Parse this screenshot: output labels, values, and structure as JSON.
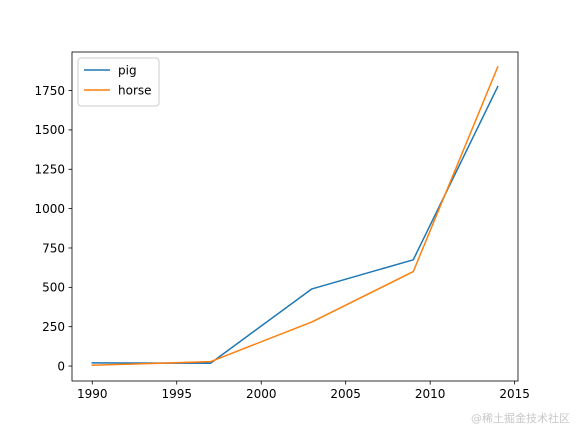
{
  "chart_data": {
    "type": "line",
    "title": "",
    "xlabel": "",
    "ylabel": "",
    "xlim": [
      1988.8,
      2015.2
    ],
    "ylim": [
      -95,
      1995
    ],
    "xticks": [
      1990,
      1995,
      2000,
      2005,
      2010,
      2015
    ],
    "yticks": [
      0,
      250,
      500,
      750,
      1000,
      1250,
      1500,
      1750
    ],
    "grid": false,
    "legend_position": "top-left",
    "series": [
      {
        "name": "pig",
        "color": "#1f77b4",
        "points": [
          [
            1990,
            20
          ],
          [
            1997,
            18
          ],
          [
            2003,
            490
          ],
          [
            2009,
            675
          ],
          [
            2014,
            1775
          ]
        ]
      },
      {
        "name": "horse",
        "color": "#ff7f0e",
        "points": [
          [
            1990,
            5
          ],
          [
            1997,
            28
          ],
          [
            2003,
            280
          ],
          [
            2009,
            600
          ],
          [
            2014,
            1900
          ]
        ]
      }
    ]
  },
  "watermark": "@稀土掘金技术社区"
}
